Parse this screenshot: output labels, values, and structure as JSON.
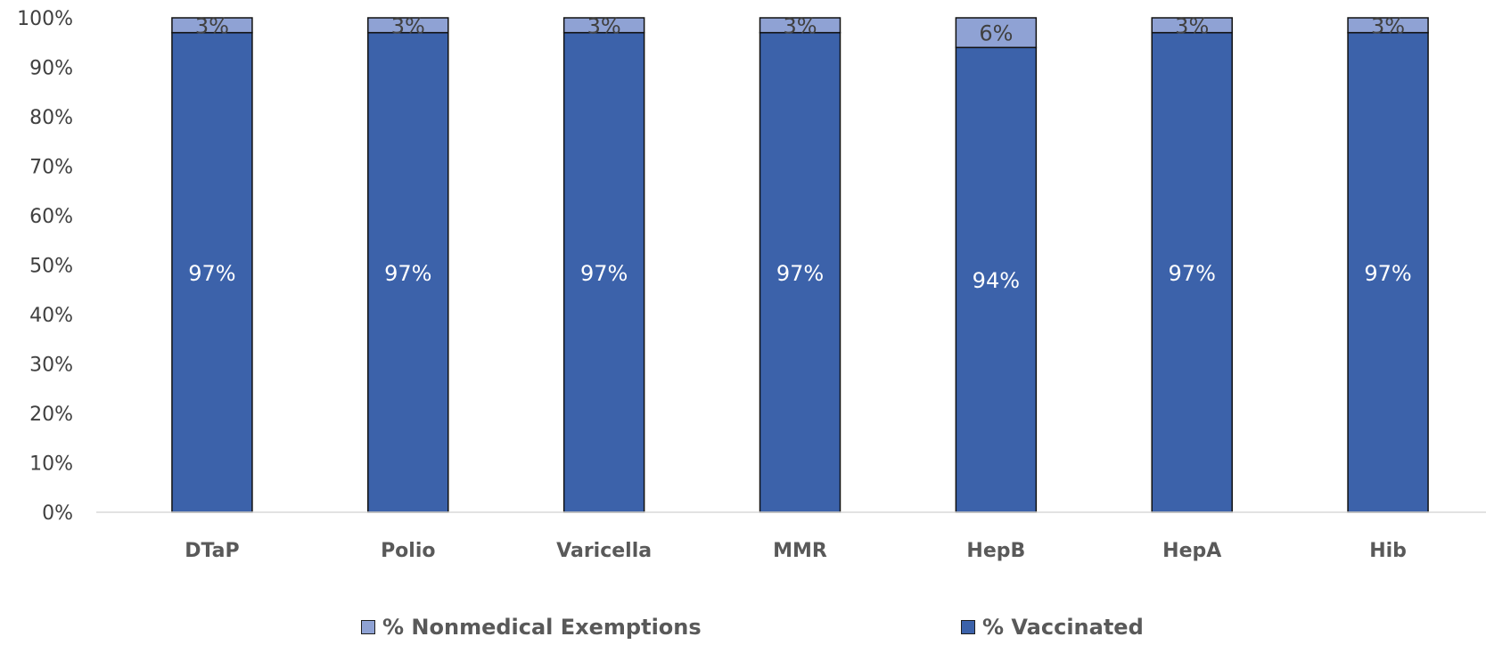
{
  "chart_data": {
    "type": "bar",
    "stacked": true,
    "categories": [
      "DTaP",
      "Polio",
      "Varicella",
      "MMR",
      "HepB",
      "HepA",
      "Hib"
    ],
    "series": [
      {
        "name": "% Vaccinated",
        "values": [
          97,
          97,
          97,
          97,
          94,
          97,
          97
        ],
        "labels": [
          "97%",
          "97%",
          "97%",
          "97%",
          "94%",
          "97%",
          "97%"
        ],
        "color": "#3c62aa"
      },
      {
        "name": "% Nonmedical Exemptions",
        "values": [
          3,
          3,
          3,
          3,
          6,
          3,
          3
        ],
        "labels": [
          "3%",
          "3%",
          "3%",
          "3%",
          "6%",
          "3%",
          "3%"
        ],
        "color": "#8fa2d4"
      }
    ],
    "ylim": [
      0,
      100
    ],
    "yticks": [
      "0%",
      "10%",
      "20%",
      "30%",
      "40%",
      "50%",
      "60%",
      "70%",
      "80%",
      "90%",
      "100%"
    ],
    "grid": false,
    "legend_position": "bottom"
  },
  "legend": {
    "items": [
      {
        "label": "% Nonmedical Exemptions",
        "color": "#8fa2d4"
      },
      {
        "label": "% Vaccinated",
        "color": "#3c62aa"
      }
    ]
  }
}
